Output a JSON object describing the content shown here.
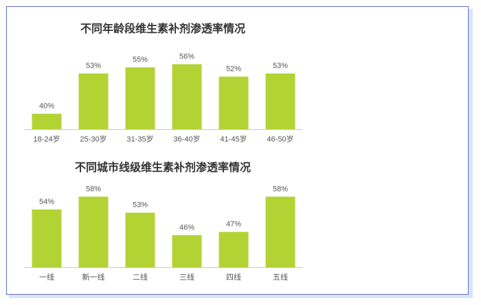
{
  "colors": {
    "bar": "#b3d334",
    "axis": "#c8c8c8",
    "frame": "#5a6fd6"
  },
  "chart_data": [
    {
      "type": "bar",
      "title": "不同年龄段维生素补剂渗透率情况",
      "categories": [
        "18-24岁",
        "25-30岁",
        "31-35岁",
        "36-40岁",
        "41-45岁",
        "46-50岁"
      ],
      "values": [
        40,
        53,
        55,
        56,
        52,
        53
      ],
      "labels": [
        "40%",
        "53%",
        "55%",
        "56%",
        "52%",
        "53%"
      ],
      "ylim": [
        35,
        60
      ],
      "grid": false
    },
    {
      "type": "bar",
      "title": "不同城市线级维生素补剂渗透率情况",
      "categories": [
        "一线",
        "新一线",
        "二线",
        "三线",
        "四线",
        "五线"
      ],
      "values": [
        54,
        58,
        53,
        46,
        47,
        58
      ],
      "labels": [
        "54%",
        "58%",
        "53%",
        "46%",
        "47%",
        "58%"
      ],
      "ylim": [
        36,
        60
      ],
      "grid": false
    }
  ]
}
